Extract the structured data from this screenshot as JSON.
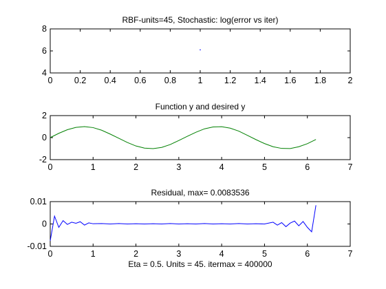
{
  "colors": {
    "background": "#ffffff",
    "axes": "#000000",
    "green_series": "#008000",
    "blue_series": "#0000ff"
  },
  "chart_data": [
    {
      "type": "scatter",
      "title": "RBF-units=45, Stochastic: log(error vs iter)",
      "xlabel": "",
      "ylabel": "",
      "xlim": [
        0,
        2
      ],
      "ylim": [
        4,
        8
      ],
      "xticks": [
        "0",
        "0.2",
        "0.4",
        "0.6",
        "0.8",
        "1",
        "1.2",
        "1.4",
        "1.6",
        "1.8",
        "2"
      ],
      "yticks": [
        "4",
        "6",
        "8"
      ],
      "grid": false,
      "series": [
        {
          "color": "#0000ff",
          "x": [
            1
          ],
          "y": [
            6.1
          ]
        }
      ]
    },
    {
      "type": "line",
      "title": "Function y and desired y",
      "xlabel": "",
      "ylabel": "",
      "xlim": [
        0,
        7
      ],
      "ylim": [
        -2,
        2
      ],
      "xticks": [
        "0",
        "1",
        "2",
        "3",
        "4",
        "5",
        "6",
        "7"
      ],
      "yticks": [
        "-2",
        "0",
        "2"
      ],
      "grid": false,
      "series": [
        {
          "color": "#008000",
          "x": [
            0.0,
            0.2,
            0.4,
            0.6,
            0.8,
            1.0,
            1.2,
            1.4,
            1.6,
            1.8,
            2.0,
            2.2,
            2.4,
            2.6,
            2.8,
            3.0,
            3.2,
            3.4,
            3.6,
            3.8,
            4.0,
            4.2,
            4.4,
            4.6,
            4.8,
            5.0,
            5.2,
            5.4,
            5.6,
            5.8,
            6.0,
            6.2
          ],
          "y": [
            0.0,
            0.39,
            0.72,
            0.93,
            1.0,
            0.91,
            0.67,
            0.32,
            -0.06,
            -0.44,
            -0.76,
            -0.95,
            -1.0,
            -0.89,
            -0.63,
            -0.26,
            0.12,
            0.49,
            0.8,
            0.97,
            0.99,
            0.86,
            0.59,
            0.21,
            -0.18,
            -0.54,
            -0.83,
            -0.98,
            -0.99,
            -0.83,
            -0.55,
            -0.17
          ]
        }
      ]
    },
    {
      "type": "line",
      "title": "Residual, max= 0.0083536",
      "xlabel": "Eta = 0.5. Units = 45. itermax = 400000",
      "ylabel": "",
      "xlim": [
        0,
        7
      ],
      "ylim": [
        -0.01,
        0.01
      ],
      "xticks": [
        "0",
        "1",
        "2",
        "3",
        "4",
        "5",
        "6",
        "7"
      ],
      "yticks": [
        "-0.01",
        "0",
        "0.01"
      ],
      "grid": false,
      "series": [
        {
          "color": "#0000ff",
          "x": [
            0.0,
            0.1,
            0.2,
            0.3,
            0.4,
            0.5,
            0.6,
            0.7,
            0.8,
            0.9,
            1.0,
            1.2,
            1.4,
            1.6,
            1.8,
            2.0,
            2.2,
            2.4,
            2.6,
            2.8,
            3.0,
            3.2,
            3.4,
            3.6,
            3.8,
            4.0,
            4.2,
            4.4,
            4.6,
            4.8,
            5.0,
            5.2,
            5.3,
            5.4,
            5.5,
            5.6,
            5.7,
            5.8,
            5.9,
            6.0,
            6.1,
            6.2
          ],
          "y": [
            -0.0075,
            0.0035,
            -0.0015,
            0.0015,
            -0.0002,
            0.0008,
            0.0003,
            0.001,
            -0.0005,
            0.0005,
            0.0001,
            0.0002,
            0.0,
            0.0002,
            0.0,
            0.0001,
            0.0,
            0.0001,
            0.0,
            0.0002,
            0.0,
            0.0001,
            0.0,
            0.0002,
            0.0,
            0.0001,
            0.0,
            0.0002,
            0.0,
            0.0001,
            0.0,
            0.0008,
            -0.0005,
            0.0006,
            -0.0012,
            0.0004,
            0.0013,
            -0.0008,
            0.0011,
            -0.0015,
            -0.0035,
            0.0083536
          ]
        }
      ]
    }
  ]
}
